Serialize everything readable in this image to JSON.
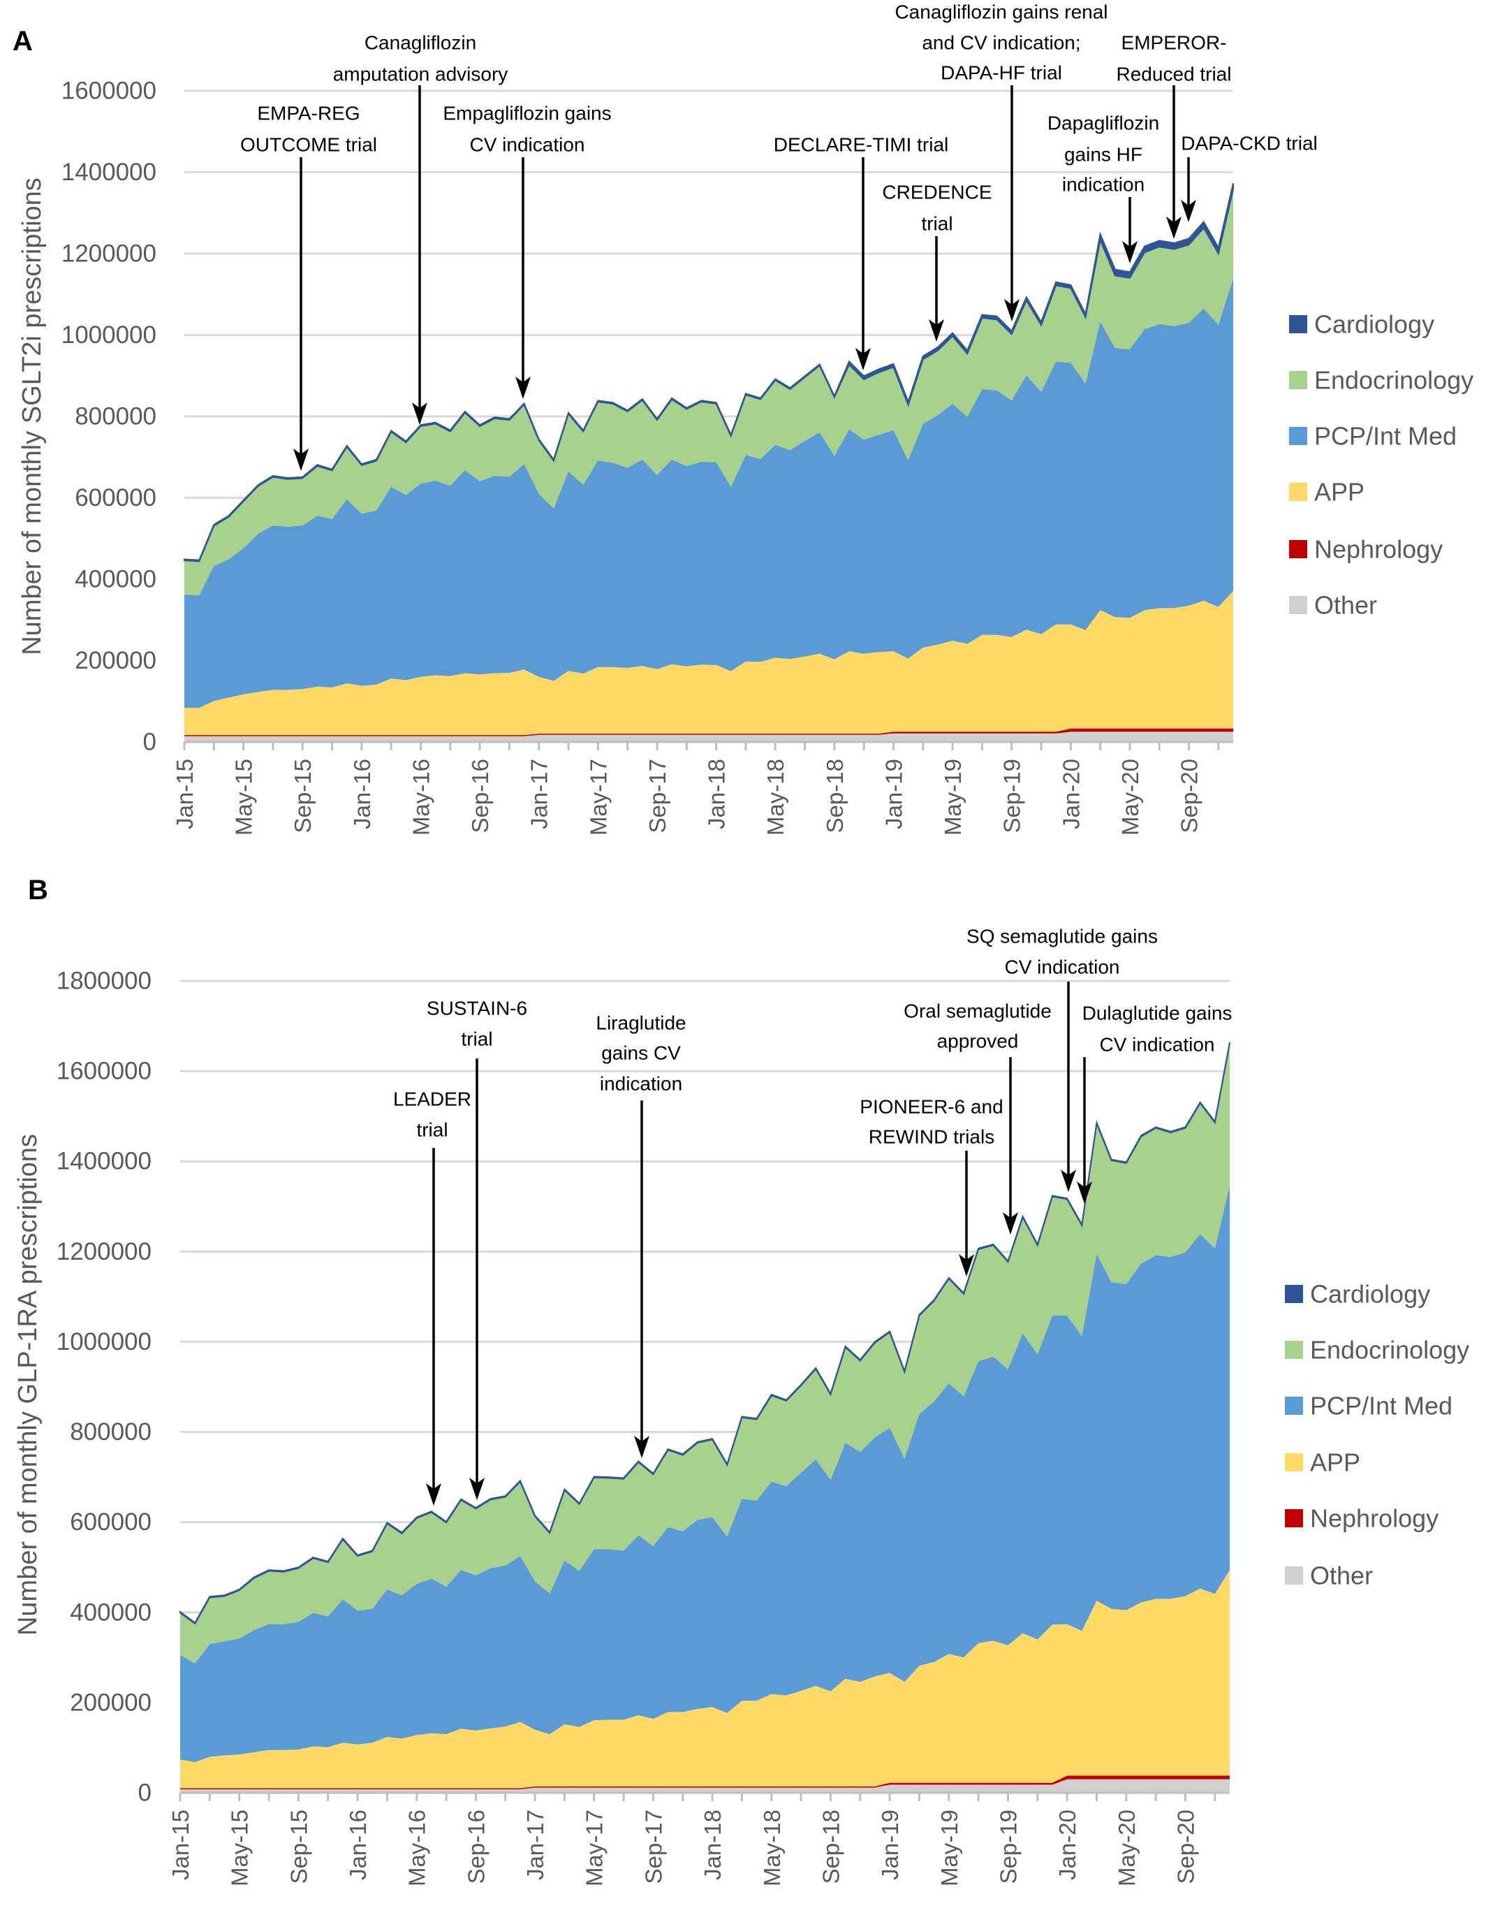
{
  "chart_data": [
    {
      "panel_label": "A",
      "type": "area",
      "stacked": true,
      "title": "",
      "xlabel": "",
      "ylabel": "Number of monthly SGLT2i prescriptions",
      "ylim": [
        0,
        1600000
      ],
      "ytick_step": 200000,
      "y_tick_labels": [
        "0",
        "200000",
        "400000",
        "600000",
        "800000",
        "1000000",
        "1200000",
        "1400000",
        "1600000"
      ],
      "x_range": [
        "Jan-15",
        "Dec-20"
      ],
      "x_tick_labels": [
        "Jan-15",
        "May-15",
        "Sep-15",
        "Jan-16",
        "May-16",
        "Sep-16",
        "Jan-17",
        "May-17",
        "Sep-17",
        "Jan-18",
        "May-18",
        "Sep-18",
        "Jan-19",
        "May-19",
        "Sep-19",
        "Jan-20",
        "May-20",
        "Sep-20"
      ],
      "grid": true,
      "legend_position": "right",
      "values_unit": "thousands",
      "series": [
        {
          "name": "Other",
          "color": "#d0d0d0",
          "values": [
            15,
            15,
            15,
            15,
            15,
            15,
            15,
            15,
            15,
            15,
            15,
            15,
            15,
            15,
            15,
            15,
            15,
            15,
            15,
            15,
            15,
            15,
            15,
            15,
            18,
            18,
            18,
            18,
            18,
            18,
            18,
            18,
            18,
            18,
            18,
            18,
            18,
            18,
            18,
            18,
            18,
            18,
            18,
            18,
            18,
            18,
            18,
            18,
            21,
            21,
            21,
            21,
            21,
            21,
            21,
            21,
            21,
            21,
            21,
            21,
            25,
            25,
            25,
            25,
            25,
            25,
            25,
            25,
            25,
            25,
            25,
            25
          ]
        },
        {
          "name": "Nephrology",
          "color": "#c00000",
          "values": [
            2,
            2,
            2,
            2,
            2,
            2,
            2,
            2,
            2,
            2,
            2,
            2,
            2,
            2,
            2,
            2,
            2,
            2,
            2,
            2,
            2,
            2,
            2,
            2,
            2,
            2,
            2,
            2,
            2,
            2,
            2,
            2,
            2,
            2,
            2,
            2,
            2,
            2,
            2,
            2,
            2,
            2,
            2,
            2,
            2,
            2,
            2,
            2,
            4,
            4,
            4,
            4,
            4,
            4,
            4,
            4,
            4,
            4,
            4,
            4,
            8,
            8,
            8,
            8,
            8,
            8,
            8,
            8,
            8,
            8,
            8,
            8
          ]
        },
        {
          "name": "APP",
          "color": "#ffd966",
          "values": [
            67,
            67,
            84,
            92,
            100,
            106,
            111,
            111,
            113,
            119,
            117,
            127,
            121,
            124,
            139,
            135,
            143,
            147,
            145,
            152,
            149,
            152,
            153,
            161,
            140,
            130,
            155,
            148,
            164,
            164,
            162,
            167,
            159,
            171,
            166,
            170,
            169,
            154,
            178,
            177,
            187,
            184,
            190,
            197,
            183,
            203,
            197,
            201,
            198,
            180,
            207,
            214,
            224,
            216,
            238,
            238,
            233,
            251,
            240,
            264,
            256,
            242,
            291,
            274,
            272,
            291,
            296,
            296,
            302,
            314,
            299,
            338
          ]
        },
        {
          "name": "PCP/Int Med",
          "color": "#5b9bd5",
          "values": [
            278,
            276,
            332,
            340,
            359,
            389,
            404,
            401,
            402,
            420,
            414,
            452,
            423,
            428,
            471,
            455,
            475,
            478,
            468,
            499,
            475,
            485,
            482,
            505,
            450,
            424,
            490,
            464,
            508,
            502,
            492,
            507,
            477,
            503,
            492,
            499,
            498,
            453,
            507,
            498,
            523,
            513,
            530,
            544,
            500,
            545,
            526,
            534,
            543,
            487,
            550,
            564,
            582,
            558,
            604,
            601,
            581,
            625,
            596,
            645,
            643,
            606,
            709,
            661,
            660,
            690,
            698,
            693,
            695,
            718,
            693,
            768
          ]
        },
        {
          "name": "Endocrinology",
          "color": "#a9d18e",
          "values": [
            84,
            84,
            98,
            104,
            115,
            117,
            119,
            117,
            116,
            122,
            119,
            129,
            119,
            122,
            135,
            129,
            141,
            140,
            133,
            141,
            135,
            141,
            139,
            146,
            131,
            117,
            141,
            131,
            144,
            145,
            138,
            146,
            135,
            148,
            140,
            147,
            144,
            125,
            148,
            147,
            159,
            150,
            156,
            164,
            144,
            159,
            148,
            153,
            155,
            136,
            158,
            159,
            166,
            155,
            175,
            174,
            163,
            184,
            163,
            188,
            183,
            163,
            200,
            178,
            175,
            189,
            190,
            189,
            192,
            198,
            175,
            219
          ]
        },
        {
          "name": "Cardiology",
          "color": "#2f5597",
          "values": [
            3,
            3,
            3,
            3,
            3,
            3,
            3,
            3,
            3,
            3,
            3,
            3,
            3,
            3,
            3,
            3,
            3,
            3,
            3,
            3,
            3,
            3,
            3,
            3,
            3,
            3,
            3,
            3,
            3,
            3,
            3,
            3,
            3,
            3,
            3,
            3,
            3,
            3,
            3,
            3,
            3,
            3,
            3,
            3,
            3,
            8,
            8,
            8,
            8,
            8,
            8,
            8,
            8,
            8,
            8,
            8,
            8,
            8,
            8,
            8,
            8,
            8,
            15,
            15,
            15,
            15,
            15,
            15,
            15,
            15,
            15,
            15
          ]
        }
      ],
      "legend": [
        "Cardiology",
        "Endocrinology",
        "PCP/Int Med",
        "APP",
        "Nephrology",
        "Other"
      ],
      "annotations": [
        {
          "lines": [
            "EMPA-REG",
            "OUTCOME trial"
          ]
        },
        {
          "lines": [
            "Canagliflozin",
            "amputation advisory"
          ]
        },
        {
          "lines": [
            "Empagliflozin gains",
            "CV indication"
          ]
        },
        {
          "lines": [
            "DECLARE-TIMI trial"
          ]
        },
        {
          "lines": [
            "CREDENCE",
            "trial"
          ]
        },
        {
          "lines": [
            "Canagliflozin gains renal",
            "and CV indication;",
            "DAPA-HF trial"
          ]
        },
        {
          "lines": [
            "EMPEROR-",
            "Reduced trial"
          ]
        },
        {
          "lines": [
            "Dapagliflozin",
            "gains HF",
            "indication"
          ]
        },
        {
          "lines": [
            "DAPA-CKD trial"
          ]
        }
      ]
    },
    {
      "panel_label": "B",
      "type": "area",
      "stacked": true,
      "title": "",
      "xlabel": "",
      "ylabel": "Number of monthly GLP-1RA prescriptions",
      "ylim": [
        0,
        1800000
      ],
      "ytick_step": 200000,
      "y_tick_labels": [
        "0",
        "200000",
        "400000",
        "600000",
        "800000",
        "1000000",
        "1200000",
        "1400000",
        "1600000",
        "1800000"
      ],
      "x_range": [
        "Jan-15",
        "Dec-20"
      ],
      "x_tick_labels": [
        "Jan-15",
        "May-15",
        "Sep-15",
        "Jan-16",
        "May-16",
        "Sep-16",
        "Jan-17",
        "May-17",
        "Sep-17",
        "Jan-18",
        "May-18",
        "Sep-18",
        "Jan-19",
        "May-19",
        "Sep-19",
        "Jan-20",
        "May-20",
        "Sep-20"
      ],
      "grid": true,
      "legend_position": "right",
      "values_unit": "thousands",
      "series": [
        {
          "name": "Other",
          "color": "#d0d0d0",
          "values": [
            8,
            8,
            8,
            8,
            8,
            8,
            8,
            8,
            8,
            8,
            8,
            8,
            8,
            8,
            8,
            8,
            8,
            8,
            8,
            8,
            8,
            8,
            8,
            8,
            12,
            12,
            12,
            12,
            12,
            12,
            12,
            12,
            12,
            12,
            12,
            12,
            12,
            12,
            12,
            12,
            12,
            12,
            12,
            12,
            12,
            12,
            12,
            12,
            18,
            18,
            18,
            18,
            18,
            18,
            18,
            18,
            18,
            18,
            18,
            18,
            30,
            30,
            30,
            30,
            30,
            30,
            30,
            30,
            30,
            30,
            30,
            30
          ]
        },
        {
          "name": "Nephrology",
          "color": "#c00000",
          "values": [
            2,
            2,
            2,
            2,
            2,
            2,
            2,
            2,
            2,
            2,
            2,
            2,
            2,
            2,
            2,
            2,
            2,
            2,
            2,
            2,
            2,
            2,
            2,
            2,
            2,
            2,
            2,
            2,
            2,
            2,
            2,
            2,
            2,
            2,
            2,
            2,
            2,
            2,
            2,
            2,
            2,
            2,
            2,
            2,
            2,
            2,
            2,
            2,
            4,
            4,
            4,
            4,
            4,
            4,
            4,
            4,
            4,
            4,
            4,
            4,
            8,
            8,
            8,
            8,
            8,
            8,
            8,
            8,
            8,
            8,
            8,
            8
          ]
        },
        {
          "name": "APP",
          "color": "#ffd966",
          "values": [
            64,
            58,
            70,
            73,
            75,
            80,
            85,
            85,
            86,
            93,
            91,
            101,
            97,
            101,
            114,
            110,
            118,
            122,
            120,
            132,
            128,
            133,
            137,
            147,
            126,
            116,
            138,
            132,
            147,
            148,
            148,
            158,
            150,
            165,
            165,
            172,
            176,
            163,
            190,
            190,
            205,
            202,
            212,
            223,
            211,
            239,
            232,
            244,
            244,
            224,
            260,
            268,
            286,
            278,
            310,
            315,
            305,
            332,
            318,
            351,
            336,
            321,
            388,
            370,
            367,
            384,
            392,
            392,
            398,
            415,
            403,
            456
          ]
        },
        {
          "name": "PCP/Int Med",
          "color": "#5b9bd5",
          "values": [
            232,
            219,
            250,
            253,
            257,
            271,
            279,
            279,
            283,
            296,
            290,
            318,
            297,
            297,
            327,
            318,
            335,
            343,
            327,
            352,
            344,
            355,
            357,
            368,
            329,
            312,
            363,
            346,
            379,
            378,
            375,
            399,
            383,
            410,
            401,
            419,
            421,
            391,
            448,
            444,
            471,
            464,
            484,
            502,
            469,
            523,
            510,
            530,
            543,
            495,
            558,
            578,
            600,
            579,
            625,
            630,
            612,
            665,
            632,
            685,
            684,
            654,
            769,
            724,
            723,
            751,
            762,
            758,
            762,
            786,
            766,
            852
          ]
        },
        {
          "name": "Endocrinology",
          "color": "#a9d18e",
          "values": [
            93,
            88,
            103,
            100,
            107,
            115,
            118,
            116,
            119,
            121,
            120,
            133,
            121,
            127,
            146,
            137,
            146,
            147,
            142,
            155,
            148,
            152,
            152,
            165,
            144,
            134,
            156,
            148,
            159,
            158,
            159,
            162,
            159,
            171,
            169,
            171,
            172,
            159,
            180,
            180,
            191,
            189,
            193,
            201,
            189,
            212,
            202,
            210,
            212,
            192,
            218,
            223,
            232,
            227,
            248,
            247,
            238,
            257,
            242,
            264,
            258,
            245,
            289,
            270,
            268,
            282,
            282,
            276,
            276,
            290,
            279,
            316
          ]
        },
        {
          "name": "Cardiology",
          "color": "#2f5597",
          "values": [
            2,
            2,
            2,
            2,
            2,
            2,
            2,
            2,
            2,
            2,
            2,
            2,
            2,
            2,
            2,
            2,
            2,
            2,
            2,
            2,
            2,
            2,
            2,
            2,
            2,
            2,
            2,
            2,
            2,
            2,
            2,
            2,
            2,
            2,
            2,
            2,
            2,
            2,
            2,
            2,
            2,
            2,
            2,
            2,
            2,
            2,
            2,
            2,
            2,
            2,
            2,
            2,
            2,
            2,
            2,
            2,
            2,
            2,
            2,
            2,
            2,
            2,
            2,
            2,
            2,
            2,
            2,
            2,
            2,
            2,
            2,
            2
          ]
        }
      ],
      "legend": [
        "Cardiology",
        "Endocrinology",
        "PCP/Int Med",
        "APP",
        "Nephrology",
        "Other"
      ],
      "annotations": [
        {
          "lines": [
            "LEADER",
            "trial"
          ]
        },
        {
          "lines": [
            "SUSTAIN-6",
            "trial"
          ]
        },
        {
          "lines": [
            "Liraglutide",
            "gains CV",
            "indication"
          ]
        },
        {
          "lines": [
            "PIONEER-6 and",
            "REWIND trials"
          ]
        },
        {
          "lines": [
            "Oral semaglutide",
            "approved"
          ]
        },
        {
          "lines": [
            "SQ semaglutide gains",
            "CV indication"
          ]
        },
        {
          "lines": [
            "Dulaglutide gains",
            "CV indication"
          ]
        }
      ]
    }
  ]
}
